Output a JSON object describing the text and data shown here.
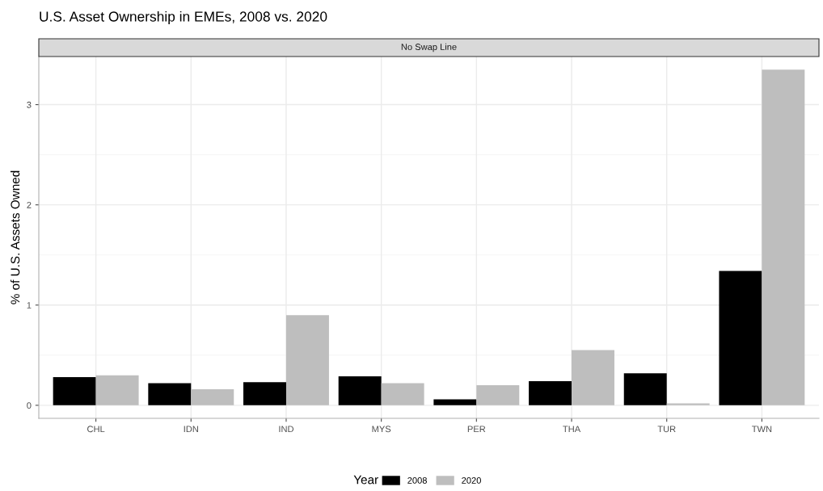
{
  "chart_data": {
    "type": "bar",
    "title": "U.S. Asset Ownership in EMEs, 2008 vs. 2020",
    "subtitle": "No Swap Line",
    "ylabel": "% of U.S. Assets Owned",
    "legend_title": "Year",
    "categories": [
      "CHL",
      "IDN",
      "IND",
      "MYS",
      "PER",
      "THA",
      "TUR",
      "TWN"
    ],
    "series": [
      {
        "name": "2008",
        "color": "#000000",
        "values": [
          0.28,
          0.22,
          0.23,
          0.29,
          0.06,
          0.24,
          0.32,
          1.34
        ]
      },
      {
        "name": "2020",
        "color": "#bebebe",
        "values": [
          0.3,
          0.16,
          0.9,
          0.22,
          0.2,
          0.55,
          0.02,
          3.35
        ]
      }
    ],
    "ylim": [
      -0.13,
      3.48
    ],
    "yticks": [
      0,
      1,
      2,
      3
    ],
    "grid": true,
    "legend": "bottom"
  }
}
